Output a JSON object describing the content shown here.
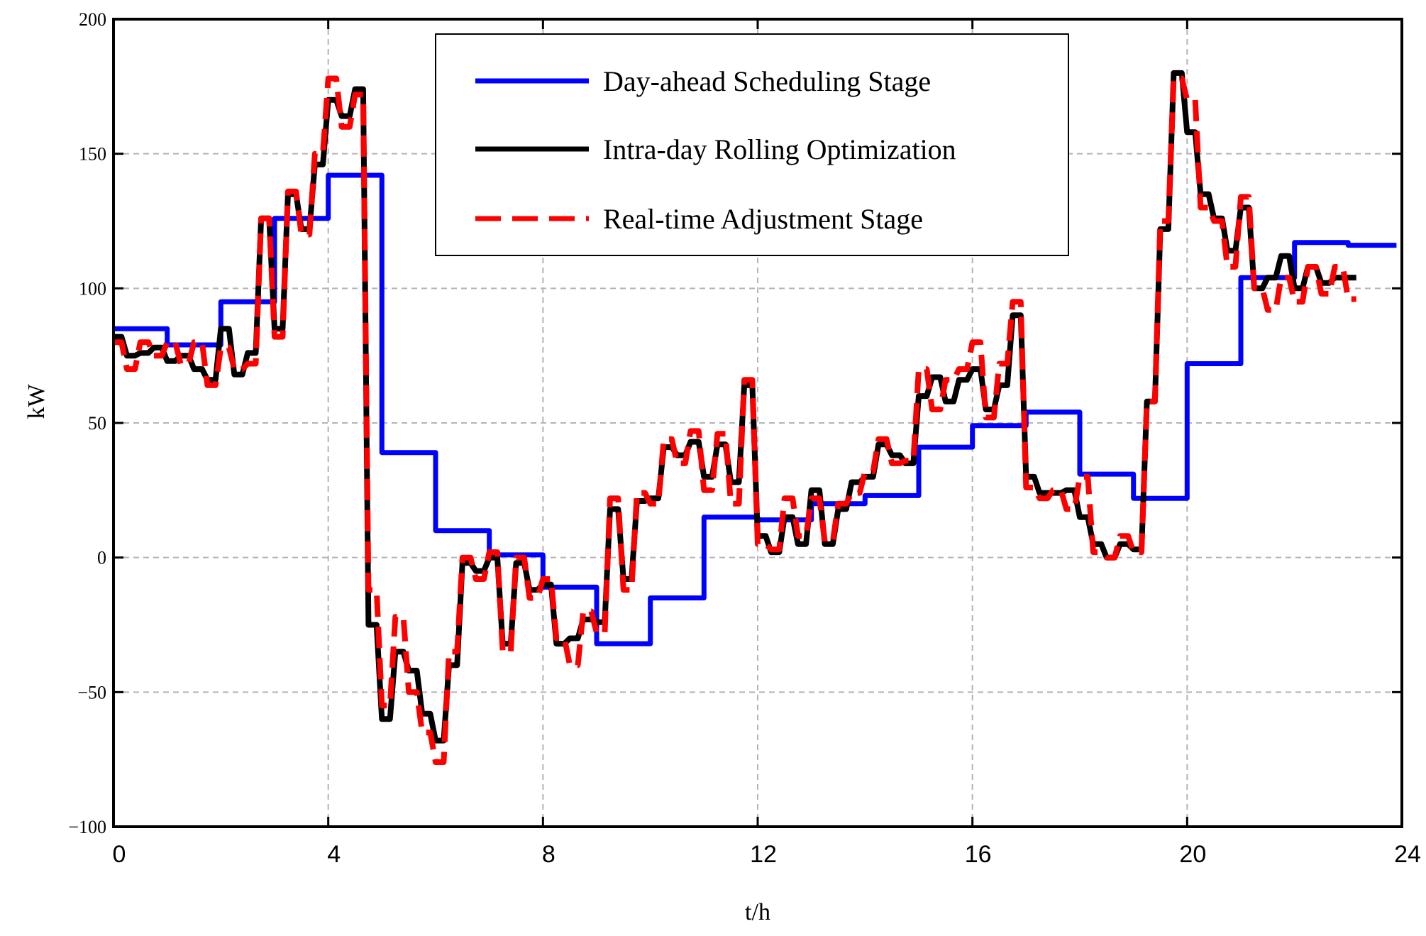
{
  "chart_data": {
    "type": "line",
    "title": "",
    "xlabel": "t/h",
    "ylabel": "kW",
    "xlim": [
      0,
      24
    ],
    "ylim": [
      -100,
      200
    ],
    "x_ticks": [
      0,
      4,
      8,
      12,
      16,
      20,
      24
    ],
    "y_ticks": [
      -100,
      -50,
      0,
      50,
      100,
      150,
      200
    ],
    "x_tick_labels": [
      "0",
      "4",
      "8",
      "12",
      "16",
      "20",
      "24"
    ],
    "y_tick_labels": [
      "-100",
      "-50",
      "0",
      "50",
      "100",
      "150",
      "200"
    ],
    "grid": true,
    "legend": "top-center",
    "series": [
      {
        "name": "Day-ahead Scheduling Stage",
        "color": "#0000ff",
        "style": "solid",
        "step": true,
        "x": [
          0,
          1,
          2,
          3,
          4,
          5,
          6,
          7,
          8,
          9,
          10,
          11,
          12,
          13,
          14,
          15,
          16,
          17,
          18,
          19,
          20,
          21,
          22,
          23
        ],
        "values": [
          85,
          79,
          95,
          126,
          142,
          39,
          10,
          1,
          -11,
          -32,
          -15,
          15,
          14,
          20,
          23,
          41,
          49,
          54,
          31,
          22,
          72,
          104,
          117,
          116
        ]
      },
      {
        "name": "Intra-day Rolling Optimization",
        "color": "#000000",
        "style": "solid",
        "x": [
          0,
          0.25,
          0.5,
          0.75,
          1,
          1.25,
          1.5,
          1.75,
          2,
          2.25,
          2.5,
          2.75,
          3,
          3.25,
          3.5,
          3.75,
          4,
          4.25,
          4.5,
          4.75,
          5,
          5.25,
          5.5,
          5.75,
          6,
          6.25,
          6.5,
          6.75,
          7,
          7.25,
          7.5,
          7.75,
          8,
          8.25,
          8.5,
          8.75,
          9,
          9.25,
          9.5,
          9.75,
          10,
          10.25,
          10.5,
          10.75,
          11,
          11.25,
          11.5,
          11.75,
          12,
          12.25,
          12.5,
          12.75,
          13,
          13.25,
          13.5,
          13.75,
          14,
          14.25,
          14.5,
          14.75,
          15,
          15.25,
          15.5,
          15.75,
          16,
          16.25,
          16.5,
          16.75,
          17,
          17.25,
          17.5,
          17.75,
          18,
          18.25,
          18.5,
          18.75,
          19,
          19.25,
          19.5,
          19.75,
          20,
          20.25,
          20.5,
          20.75,
          21,
          21.25,
          21.5,
          21.75,
          22,
          22.25,
          22.5,
          22.75,
          23
        ],
        "values": [
          82,
          75,
          76,
          78,
          73,
          75,
          70,
          66,
          85,
          68,
          76,
          126,
          85,
          135,
          122,
          146,
          170,
          164,
          174,
          -25,
          -60,
          -35,
          -42,
          -58,
          -68,
          -40,
          -2,
          -5,
          0,
          -32,
          -2,
          -12,
          -10,
          -32,
          -30,
          -23,
          -24,
          18,
          -8,
          21,
          22,
          41,
          38,
          43,
          30,
          42,
          28,
          64,
          8,
          2,
          15,
          5,
          25,
          5,
          18,
          28,
          30,
          42,
          38,
          35,
          60,
          67,
          58,
          66,
          70,
          55,
          64,
          90,
          30,
          24,
          24,
          25,
          15,
          5,
          0,
          5,
          3,
          58,
          122,
          180,
          158,
          135,
          126,
          114,
          130,
          100,
          104,
          112,
          100,
          108,
          102,
          104,
          104
        ]
      },
      {
        "name": "Real-time Adjustment Stage",
        "color": "#ff0000",
        "style": "dashed",
        "x": [
          0,
          0.25,
          0.5,
          0.75,
          1,
          1.25,
          1.5,
          1.75,
          2,
          2.25,
          2.5,
          2.75,
          3,
          3.25,
          3.5,
          3.75,
          4,
          4.25,
          4.5,
          4.75,
          5,
          5.25,
          5.5,
          5.75,
          6,
          6.25,
          6.5,
          6.75,
          7,
          7.25,
          7.5,
          7.75,
          8,
          8.25,
          8.5,
          8.75,
          9,
          9.25,
          9.5,
          9.75,
          10,
          10.25,
          10.5,
          10.75,
          11,
          11.25,
          11.5,
          11.75,
          12,
          12.25,
          12.5,
          12.75,
          13,
          13.25,
          13.5,
          13.75,
          14,
          14.25,
          14.5,
          14.75,
          15,
          15.25,
          15.5,
          15.75,
          16,
          16.25,
          16.5,
          16.75,
          17,
          17.25,
          17.5,
          17.75,
          18,
          18.25,
          18.5,
          18.75,
          19,
          19.25,
          19.5,
          19.75,
          20,
          20.25,
          20.5,
          20.75,
          21,
          21.25,
          21.5,
          21.75,
          22,
          22.25,
          22.5,
          22.75,
          23
        ],
        "values": [
          80,
          70,
          80,
          75,
          80,
          72,
          80,
          64,
          78,
          70,
          72,
          126,
          82,
          136,
          120,
          150,
          178,
          160,
          172,
          -12,
          -55,
          -22,
          -50,
          -65,
          -76,
          -35,
          0,
          -8,
          2,
          -35,
          0,
          -15,
          -8,
          -30,
          -40,
          -20,
          -28,
          22,
          -12,
          24,
          20,
          44,
          35,
          47,
          25,
          46,
          20,
          66,
          5,
          3,
          22,
          8,
          22,
          6,
          20,
          24,
          32,
          44,
          35,
          36,
          70,
          55,
          66,
          70,
          80,
          52,
          72,
          95,
          26,
          22,
          25,
          18,
          30,
          2,
          0,
          8,
          2,
          58,
          125,
          178,
          170,
          130,
          125,
          108,
          134,
          100,
          92,
          104,
          95,
          108,
          98,
          108,
          96
        ]
      }
    ]
  }
}
